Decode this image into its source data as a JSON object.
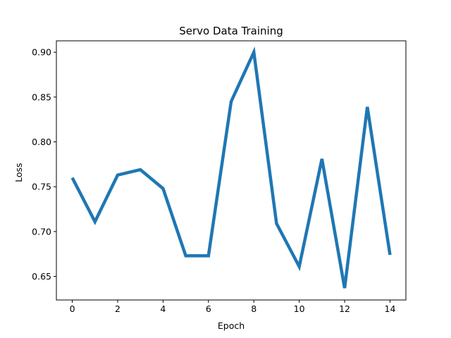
{
  "chart_data": {
    "type": "line",
    "title": "Servo Data Training",
    "xlabel": "Epoch",
    "ylabel": "Loss",
    "xlim": [
      -0.7,
      14.7
    ],
    "ylim": [
      0.6237,
      0.9127
    ],
    "x_ticks": [
      0,
      2,
      4,
      6,
      8,
      10,
      12,
      14
    ],
    "y_ticks": [
      0.65,
      0.7,
      0.75,
      0.8,
      0.85,
      0.9
    ],
    "x_tick_labels": [
      "0",
      "2",
      "4",
      "6",
      "8",
      "10",
      "12",
      "14"
    ],
    "y_tick_labels": [
      "0.65",
      "0.70",
      "0.75",
      "0.80",
      "0.85",
      "0.90"
    ],
    "grid": false,
    "legend": "none",
    "series": [
      {
        "color": "#1f77b4",
        "x": [
          0,
          1,
          2,
          3,
          4,
          5,
          6,
          7,
          8,
          9,
          10,
          11,
          12,
          13,
          14
        ],
        "values": [
          0.76,
          0.711,
          0.763,
          0.769,
          0.748,
          0.673,
          0.673,
          0.845,
          0.9,
          0.709,
          0.661,
          0.781,
          0.637,
          0.839,
          0.674
        ]
      }
    ]
  }
}
